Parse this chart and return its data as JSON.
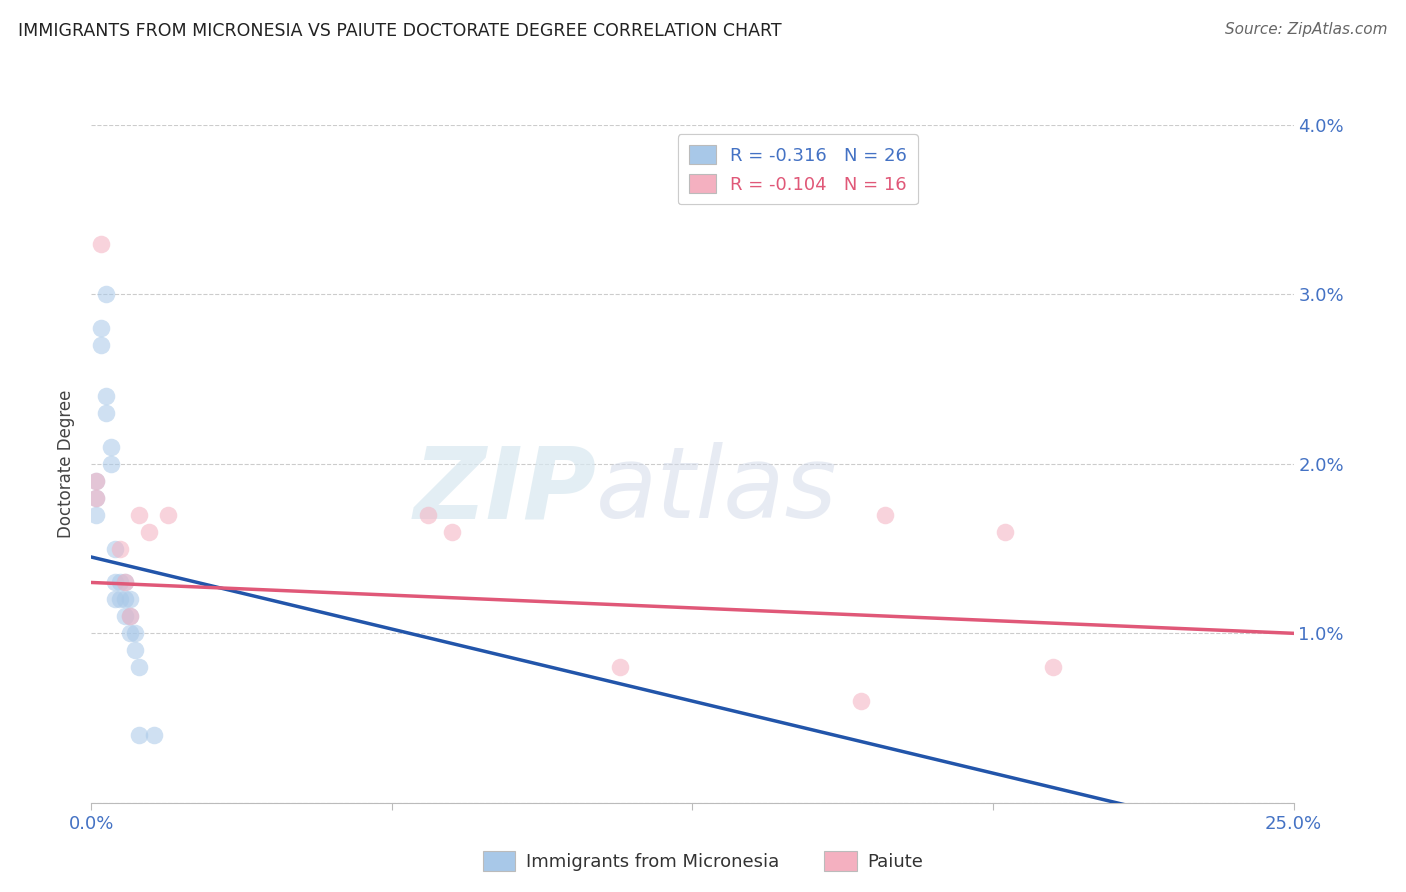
{
  "title": "IMMIGRANTS FROM MICRONESIA VS PAIUTE DOCTORATE DEGREE CORRELATION CHART",
  "source": "Source: ZipAtlas.com",
  "ylabel": "Doctorate Degree",
  "xlim": [
    0.0,
    0.25
  ],
  "ylim": [
    0.0,
    0.04
  ],
  "yticks": [
    0.0,
    0.01,
    0.02,
    0.03,
    0.04
  ],
  "ytick_labels": [
    "",
    "1.0%",
    "2.0%",
    "3.0%",
    "4.0%"
  ],
  "xticks": [
    0.0,
    0.0625,
    0.125,
    0.1875,
    0.25
  ],
  "xtick_labels": [
    "0.0%",
    "",
    "",
    "",
    "25.0%"
  ],
  "blue_R": -0.316,
  "blue_N": 26,
  "pink_R": -0.104,
  "pink_N": 16,
  "blue_color": "#a8c8e8",
  "pink_color": "#f4b0c0",
  "blue_line_color": "#2255aa",
  "pink_line_color": "#e05878",
  "watermark_zip": "ZIP",
  "watermark_atlas": "atlas",
  "legend_label_blue": "Immigrants from Micronesia",
  "legend_label_pink": "Paiute",
  "legend_r_color": "#4472c4",
  "legend_pink_color": "#e05878",
  "blue_scatter_x": [
    0.001,
    0.001,
    0.001,
    0.002,
    0.002,
    0.003,
    0.003,
    0.003,
    0.004,
    0.004,
    0.005,
    0.005,
    0.005,
    0.006,
    0.006,
    0.007,
    0.007,
    0.007,
    0.008,
    0.008,
    0.008,
    0.009,
    0.009,
    0.01,
    0.01,
    0.013
  ],
  "blue_scatter_y": [
    0.019,
    0.018,
    0.017,
    0.028,
    0.027,
    0.03,
    0.024,
    0.023,
    0.021,
    0.02,
    0.015,
    0.013,
    0.012,
    0.013,
    0.012,
    0.013,
    0.012,
    0.011,
    0.012,
    0.011,
    0.01,
    0.01,
    0.009,
    0.008,
    0.004,
    0.004
  ],
  "pink_scatter_x": [
    0.001,
    0.001,
    0.002,
    0.006,
    0.007,
    0.008,
    0.01,
    0.012,
    0.016,
    0.07,
    0.075,
    0.11,
    0.16,
    0.165,
    0.19,
    0.2
  ],
  "pink_scatter_y": [
    0.019,
    0.018,
    0.033,
    0.015,
    0.013,
    0.011,
    0.017,
    0.016,
    0.017,
    0.017,
    0.016,
    0.008,
    0.006,
    0.017,
    0.016,
    0.008
  ],
  "blue_line_x": [
    0.0,
    0.25
  ],
  "blue_line_y": [
    0.0145,
    -0.0025
  ],
  "pink_line_x": [
    0.0,
    0.25
  ],
  "pink_line_y": [
    0.013,
    0.01
  ],
  "grid_color": "#cccccc",
  "bg_color": "#ffffff",
  "title_color": "#222222",
  "axis_tick_color": "#4472c4",
  "bubble_size": 160
}
